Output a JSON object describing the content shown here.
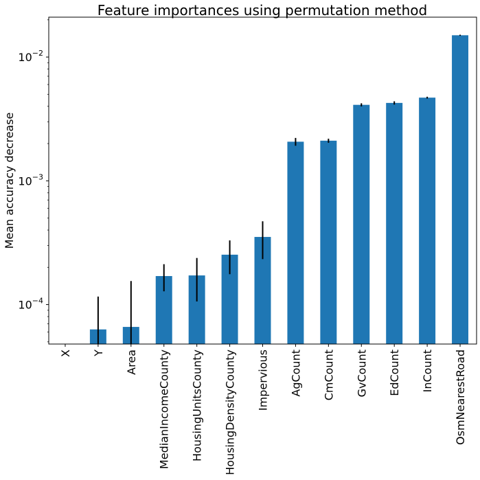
{
  "chart_data": {
    "type": "bar",
    "title": "Feature importances using permutation method",
    "xlabel": "",
    "ylabel": "Mean accuracy decrease",
    "yscale": "log",
    "ylim": [
      4.8e-05,
      0.021
    ],
    "yticks": [
      {
        "value": 0.0001,
        "base": "10",
        "exp": "−4"
      },
      {
        "value": 0.001,
        "base": "10",
        "exp": "−3"
      },
      {
        "value": 0.01,
        "base": "10",
        "exp": "−2"
      }
    ],
    "categories": [
      "X",
      "Y",
      "Area",
      "MedianIncomeCounty",
      "HousingUnitsCounty",
      "HousingDensityCounty",
      "Impervious",
      "AgCount",
      "CmCount",
      "GvCount",
      "EdCount",
      "InCount",
      "OsmNearestRoad"
    ],
    "values": [
      4e-05,
      6.3e-05,
      6.6e-05,
      0.00017,
      0.000172,
      0.000253,
      0.000352,
      0.00207,
      0.00211,
      0.00411,
      0.00426,
      0.0047,
      0.015
    ],
    "errors": [
      0,
      5.3e-05,
      8.9e-05,
      4.2e-05,
      6.6e-05,
      7.7e-05,
      0.000119,
      0.00015,
      8e-05,
      0.00012,
      0.00013,
      8e-05,
      0.00015
    ],
    "bar_color": "#1f77b4",
    "error_color": "#000000",
    "grid": false,
    "legend": "none"
  }
}
